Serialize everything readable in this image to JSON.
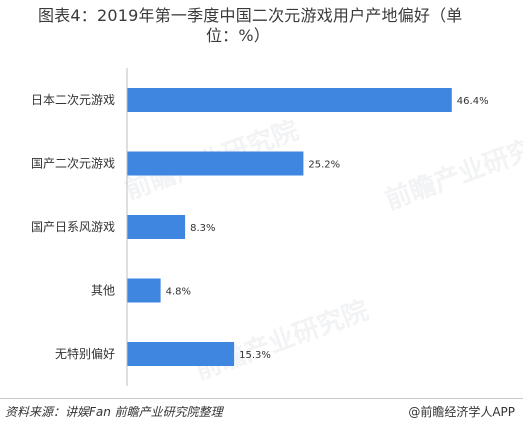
{
  "title": {
    "line1": "图表4：2019年第一季度中国二次元游戏用户产地偏好（单",
    "line2": "位：%）"
  },
  "chart_data": {
    "type": "bar",
    "orientation": "horizontal",
    "categories": [
      "日本二次元游戏",
      "国产二次元游戏",
      "国产日系风游戏",
      "其他",
      "无特别偏好"
    ],
    "values": [
      46.4,
      25.2,
      8.3,
      4.8,
      15.3
    ],
    "value_labels": [
      "46.4%",
      "25.2%",
      "8.3%",
      "4.8%",
      "15.3%"
    ],
    "unit": "%",
    "bar_color": "#3e86e0",
    "xlim": [
      0,
      50
    ],
    "grid": false,
    "legend": "none"
  },
  "watermark": {
    "text": "前瞻产业研究院"
  },
  "footer": {
    "source": "资料来源：讲娱Fan 前瞻产业研究院整理",
    "brand": "@前瞻经济学人APP"
  }
}
